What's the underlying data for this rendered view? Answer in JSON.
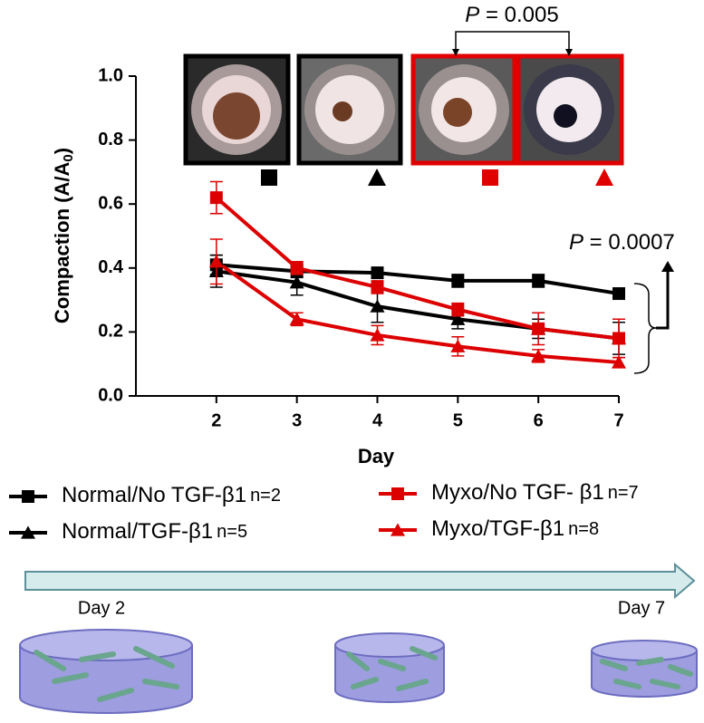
{
  "chart_data": {
    "type": "line",
    "x_label": "Day",
    "y_label": {
      "text": "Compaction (A/A",
      "sub": "0",
      "end": ")"
    },
    "x": [
      2,
      3,
      4,
      5,
      6,
      7
    ],
    "xlim": [
      1,
      7
    ],
    "xticks": [
      2,
      3,
      4,
      5,
      6,
      7
    ],
    "ylim": [
      0,
      1
    ],
    "yticks": [
      {
        "value": 0,
        "label": "0.0"
      },
      0.2,
      0.4,
      0.6,
      0.8,
      {
        "value": 1,
        "label": "1.0"
      }
    ],
    "series": [
      {
        "name": "Normal/No TGF-β1",
        "n": "n=2",
        "color": "#000000",
        "marker": "square",
        "values": [
          0.41,
          0.39,
          0.385,
          0.36,
          0.36,
          0.32
        ],
        "errors": [
          0.03,
          0.02,
          0.015,
          0.02,
          0.02,
          0.015
        ]
      },
      {
        "name": "Normal/TGF-β1",
        "n": "n=5",
        "color": "#000000",
        "marker": "triangle",
        "values": [
          0.39,
          0.355,
          0.28,
          0.24,
          0.21,
          0.18
        ],
        "errors": [
          0.05,
          0.04,
          0.05,
          0.03,
          0.03,
          0.05
        ]
      },
      {
        "name": "Myxo/No TGF- β1",
        "n": "n=7",
        "color": "#dd0000",
        "marker": "square",
        "values": [
          0.62,
          0.4,
          0.34,
          0.27,
          0.21,
          0.18
        ],
        "errors": [
          0.05,
          0.02,
          0.02,
          0.02,
          0.05,
          0.06
        ]
      },
      {
        "name": "Myxo/TGF-β1",
        "n": "n=8",
        "color": "#dd0000",
        "marker": "triangle",
        "values": [
          0.42,
          0.24,
          0.19,
          0.155,
          0.125,
          0.105
        ],
        "errors": [
          0.07,
          0.02,
          0.03,
          0.03,
          0.02,
          0.015
        ]
      }
    ],
    "annotations": [
      {
        "italic": "P",
        "text": " = 0.005"
      },
      {
        "italic": "P",
        "text": " = 0.0007"
      }
    ]
  },
  "timeline": {
    "labels": [
      "Day 2",
      "Day 7"
    ]
  }
}
